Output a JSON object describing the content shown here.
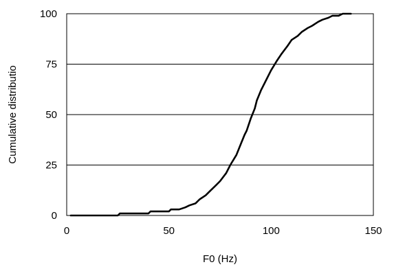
{
  "chart_data": {
    "type": "line",
    "title": "",
    "xlabel": "F0 (Hz)",
    "ylabel": "Cumulative distributio",
    "xlim": [
      0,
      150
    ],
    "ylim": [
      0,
      100
    ],
    "xticks": [
      0,
      50,
      100,
      150
    ],
    "yticks": [
      0,
      25,
      50,
      75,
      100
    ],
    "xtick_labels": [
      "0",
      "50",
      "100",
      "150"
    ],
    "ytick_labels": [
      "0",
      "25",
      "50",
      "75",
      "100"
    ],
    "grid": "horizontal",
    "legend": "none",
    "series": [
      {
        "x": [
          2,
          10,
          20,
          25,
          26,
          30,
          35,
          40,
          41,
          45,
          50,
          51,
          55,
          58,
          60,
          63,
          65,
          68,
          70,
          73,
          75,
          78,
          80,
          83,
          85,
          87,
          88,
          90,
          92,
          93,
          95,
          97,
          100,
          103,
          105,
          108,
          110,
          113,
          115,
          118,
          120,
          123,
          125,
          128,
          130,
          133,
          135,
          137,
          139
        ],
        "values": [
          0,
          0,
          0,
          0,
          1,
          1,
          1,
          1,
          2,
          2,
          2,
          3,
          3,
          4,
          5,
          6,
          8,
          10,
          12,
          15,
          17,
          21,
          25,
          30,
          35,
          40,
          42,
          48,
          53,
          57,
          62,
          66,
          72,
          77,
          80,
          84,
          87,
          89,
          91,
          93,
          94,
          96,
          97,
          98,
          99,
          99,
          100,
          100,
          100
        ],
        "color": "#000000"
      }
    ]
  }
}
